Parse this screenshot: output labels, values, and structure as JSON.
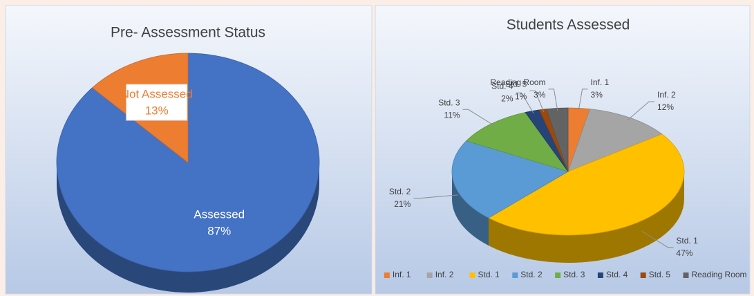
{
  "chart_data": [
    {
      "type": "pie",
      "title": "Pre- Assessment Status",
      "categories": [
        "Assessed",
        "Not Assessed"
      ],
      "values": [
        87,
        13
      ],
      "value_labels": [
        "87%",
        "13%"
      ],
      "colors": [
        "#4472c4",
        "#ed7d31"
      ],
      "legend": false
    },
    {
      "type": "pie",
      "title": "Students Assessed",
      "categories": [
        "Inf. 1",
        "Inf. 2",
        "Std. 1",
        "Std. 2",
        "Std. 3",
        "Std. 4",
        "Std. 5",
        "Reading Room"
      ],
      "values": [
        3,
        12,
        47,
        21,
        11,
        2,
        1,
        3
      ],
      "value_labels": [
        "3%",
        "12%",
        "47%",
        "21%",
        "11%",
        "2%",
        "1%",
        "3%"
      ],
      "colors": [
        "#ed7d31",
        "#a5a5a5",
        "#ffc000",
        "#5b9bd5",
        "#70ad47",
        "#264478",
        "#9e480e",
        "#636363"
      ],
      "legend": "bottom"
    }
  ]
}
